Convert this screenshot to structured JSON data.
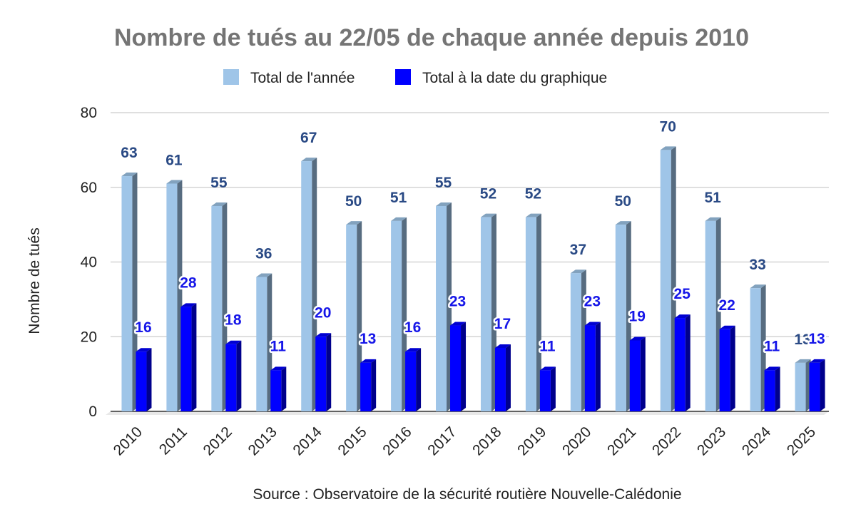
{
  "chart_data": {
    "type": "bar",
    "title": "Nombre de tués au 22/05 de chaque année depuis 2010",
    "ylabel": "Nombre de tués",
    "xlabel": "",
    "source": "Source : Observatoire de la sécurité routière Nouvelle-Calédonie",
    "ylim": [
      0,
      80
    ],
    "yticks": [
      0,
      20,
      40,
      60,
      80
    ],
    "grid": true,
    "legend_position": "top",
    "categories": [
      "2010",
      "2011",
      "2012",
      "2013",
      "2014",
      "2015",
      "2016",
      "2017",
      "2018",
      "2019",
      "2020",
      "2021",
      "2022",
      "2023",
      "2024",
      "2025"
    ],
    "series": [
      {
        "name": "Total de l'année",
        "color": "#9fc5e8",
        "values": [
          63,
          61,
          55,
          36,
          67,
          50,
          51,
          55,
          52,
          52,
          37,
          50,
          70,
          51,
          33,
          13
        ]
      },
      {
        "name": "Total à la date du graphique",
        "color": "#0000ff",
        "values": [
          16,
          28,
          18,
          11,
          20,
          13,
          16,
          23,
          17,
          11,
          23,
          19,
          25,
          22,
          11,
          13
        ]
      }
    ]
  }
}
